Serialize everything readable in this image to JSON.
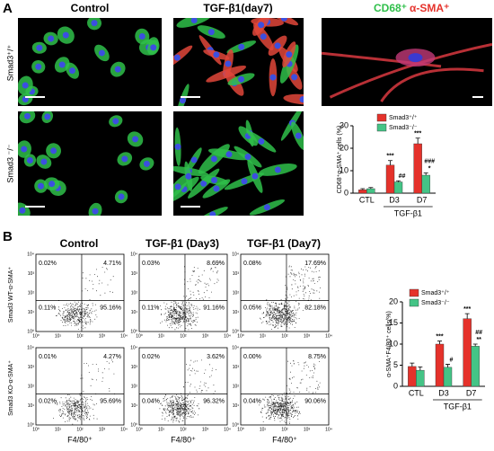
{
  "panel_a": {
    "label": "A",
    "column_titles": [
      "Control",
      "TGF-β1(day7)"
    ],
    "merge_title": {
      "cd68": "CD68⁺",
      "sma": "α-SMA⁺"
    },
    "row_labels": [
      "Smad3⁺/⁺",
      "Smad3 ⁻/⁻"
    ]
  },
  "panel_b": {
    "label": "B",
    "column_titles": [
      "Control",
      "TGF-β1 (Day3)",
      "TGF-β1 (Day7)"
    ],
    "row_labels": [
      "Smad3 WT-α-SMA⁺",
      "Smad3 KO-α-SMA⁺"
    ],
    "x_label": "F4/80⁺",
    "axis_ticks": [
      "10⁰",
      "10¹",
      "10²",
      "10³",
      "10⁴"
    ],
    "quadrants": [
      [
        [
          "0.02%",
          "4.71%",
          "0.11%",
          "95.16%"
        ],
        [
          "0.03%",
          "8.69%",
          "0.11%",
          "91.16%"
        ],
        [
          "0.08%",
          "17.69%",
          "0.05%",
          "82.18%"
        ]
      ],
      [
        [
          "0.01%",
          "4.27%",
          "0.02%",
          "95.69%"
        ],
        [
          "0.02%",
          "3.62%",
          "0.04%",
          "96.32%"
        ],
        [
          "0.00%",
          "8.75%",
          "0.04%",
          "90.06%"
        ]
      ]
    ]
  },
  "chart_data": [
    {
      "type": "bar",
      "y_label": "CD68⁺α-SMA⁺ cells (%)",
      "categories": [
        "CTL",
        "D3",
        "D7"
      ],
      "group_label": "TGF-β1",
      "ylim": [
        0,
        30
      ],
      "yticks": [
        0,
        10,
        20,
        30
      ],
      "series": [
        {
          "name": "Smad3⁺/⁺",
          "color": "#e5322b",
          "values": [
            1.5,
            12.5,
            22
          ],
          "errors": [
            0.5,
            2,
            2.5
          ],
          "annotations": [
            null,
            [
              "***"
            ],
            [
              "***"
            ]
          ]
        },
        {
          "name": "Smad3⁻/⁻",
          "color": "#44c486",
          "values": [
            2,
            5,
            8
          ],
          "errors": [
            0.5,
            0.5,
            1
          ],
          "annotations": [
            null,
            [
              "##"
            ],
            [
              "###",
              "*"
            ]
          ]
        }
      ]
    },
    {
      "type": "bar",
      "y_label": "α-SMA⁺F4/80⁺ cells(%)",
      "categories": [
        "CTL",
        "D3",
        "D7"
      ],
      "group_label": "TGF-β1",
      "ylim": [
        0,
        20
      ],
      "yticks": [
        0,
        5,
        10,
        15,
        20
      ],
      "series": [
        {
          "name": "Smad3⁺/⁺",
          "color": "#e5322b",
          "values": [
            4.7,
            10,
            16
          ],
          "errors": [
            0.8,
            0.7,
            1.2
          ],
          "annotations": [
            null,
            [
              "***"
            ],
            [
              "***"
            ]
          ]
        },
        {
          "name": "Smad3⁻/⁻",
          "color": "#44c486",
          "values": [
            3.8,
            4.5,
            9.5
          ],
          "errors": [
            0.8,
            0.7,
            0.5
          ],
          "annotations": [
            null,
            [
              "#"
            ],
            [
              "##",
              "**"
            ]
          ]
        }
      ]
    }
  ]
}
